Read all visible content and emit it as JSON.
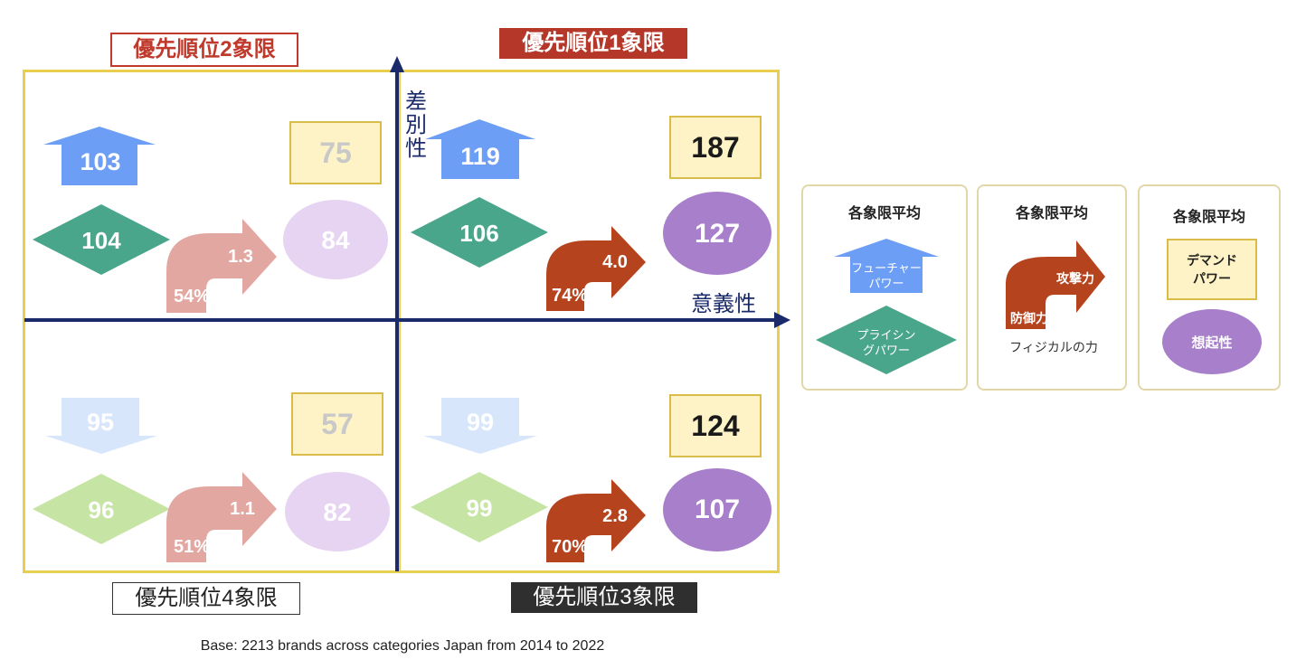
{
  "quadrant_labels": {
    "q1": "優先順位1象限",
    "q2": "優先順位2象限",
    "q3": "優先順位3象限",
    "q4": "優先順位4象限"
  },
  "axes": {
    "y_label": "差別性",
    "x_label": "意義性"
  },
  "quadrants": {
    "q2": {
      "future_power": "103",
      "pricing_power": "104",
      "attack": "1.3",
      "defense": "54%",
      "demand_power": "75",
      "salience": "84"
    },
    "q1": {
      "future_power": "119",
      "pricing_power": "106",
      "attack": "4.0",
      "defense": "74%",
      "demand_power": "187",
      "salience": "127"
    },
    "q4": {
      "future_power": "95",
      "pricing_power": "96",
      "attack": "1.1",
      "defense": "51%",
      "demand_power": "57",
      "salience": "82"
    },
    "q3": {
      "future_power": "99",
      "pricing_power": "99",
      "attack": "2.8",
      "defense": "70%",
      "demand_power": "124",
      "salience": "107"
    }
  },
  "legend": {
    "card1": {
      "title": "各象限平均",
      "future_power_l1": "フューチャー",
      "future_power_l2": "パワー",
      "pricing_power_l1": "プライシン",
      "pricing_power_l2": "グパワー"
    },
    "card2": {
      "title": "各象限平均",
      "attack": "攻撃力",
      "defense": "防御力",
      "physical": "フィジカルの力"
    },
    "card3": {
      "title": "各象限平均",
      "demand_l1": "デマンド",
      "demand_l2": "パワー",
      "salience": "想起性"
    }
  },
  "note": "Base: 2213 brands across categories Japan from 2014 to 2022",
  "colors": {
    "frame": "#e9cf4f",
    "axis": "#1b2a6b",
    "up_arrow_strong": "#6d9ef5",
    "up_arrow_faded": "#d8e6fc",
    "diamond_strong": "#4aa68b",
    "diamond_faded": "#c6e5a4",
    "curve_strong": "#b5431e",
    "curve_faded": "#e3a7a2",
    "circle_strong": "#a77fca",
    "circle_faded": "#e6d4f2",
    "box_fill": "#fdf3c6"
  }
}
